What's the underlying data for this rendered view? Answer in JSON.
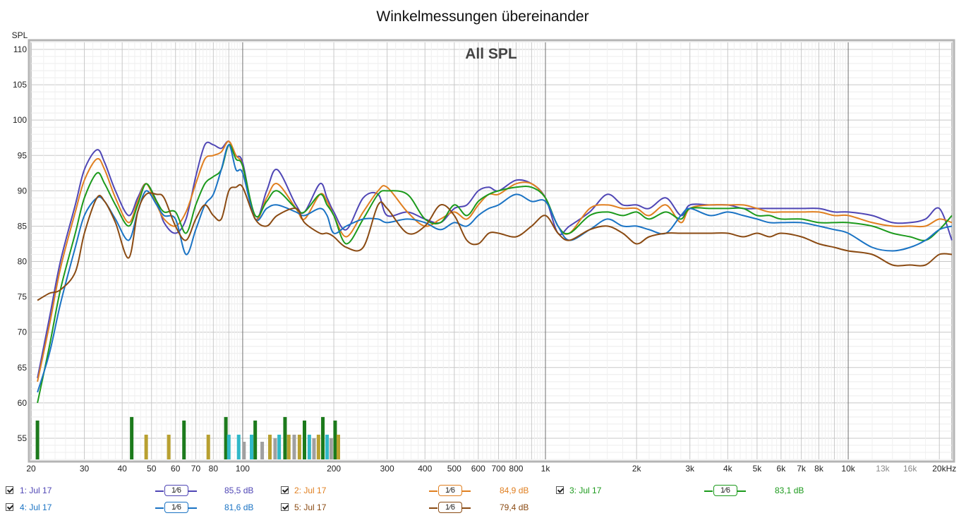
{
  "chart_data": {
    "type": "line",
    "title": "Winkelmessungen übereinander",
    "overlay_label": "All SPL",
    "ylabel": "SPL",
    "xlabel": "",
    "xscale": "log",
    "xlim": [
      20,
      22000
    ],
    "ylim": [
      52,
      111
    ],
    "yticks": [
      55,
      60,
      65,
      70,
      75,
      80,
      85,
      90,
      95,
      100,
      105,
      110
    ],
    "xticks": [
      {
        "v": 20,
        "label": "20"
      },
      {
        "v": 30,
        "label": "30"
      },
      {
        "v": 40,
        "label": "40"
      },
      {
        "v": 50,
        "label": "50"
      },
      {
        "v": 60,
        "label": "60"
      },
      {
        "v": 70,
        "label": "70"
      },
      {
        "v": 80,
        "label": "80"
      },
      {
        "v": 100,
        "label": "100"
      },
      {
        "v": 200,
        "label": "200"
      },
      {
        "v": 300,
        "label": "300"
      },
      {
        "v": 400,
        "label": "400"
      },
      {
        "v": 500,
        "label": "500"
      },
      {
        "v": 600,
        "label": "600"
      },
      {
        "v": 700,
        "label": "700"
      },
      {
        "v": 800,
        "label": "800"
      },
      {
        "v": 1000,
        "label": "1k"
      },
      {
        "v": 2000,
        "label": "2k"
      },
      {
        "v": 3000,
        "label": "3k"
      },
      {
        "v": 4000,
        "label": "4k"
      },
      {
        "v": 5000,
        "label": "5k"
      },
      {
        "v": 6000,
        "label": "6k"
      },
      {
        "v": 7000,
        "label": "7k"
      },
      {
        "v": 8000,
        "label": "8k"
      },
      {
        "v": 10000,
        "label": "10k"
      },
      {
        "v": 13000,
        "label": "13k"
      },
      {
        "v": 16000,
        "label": "16k"
      },
      {
        "v": 20000,
        "label": "20kHz"
      }
    ],
    "grid": true,
    "series": [
      {
        "name": "1: Jul 17",
        "color": "#4f46b5",
        "smoothing": "1⁄6",
        "level": "85,5 dB",
        "x": [
          21,
          23,
          25,
          28,
          30,
          33,
          35,
          38,
          42,
          45,
          48,
          52,
          55,
          60,
          65,
          70,
          75,
          80,
          85,
          90,
          95,
          100,
          110,
          120,
          130,
          150,
          160,
          180,
          190,
          200,
          220,
          250,
          280,
          300,
          350,
          400,
          450,
          500,
          550,
          600,
          650,
          700,
          800,
          900,
          1000,
          1100,
          1200,
          1400,
          1600,
          1800,
          2000,
          2200,
          2500,
          2800,
          3000,
          3500,
          4000,
          4500,
          5000,
          5500,
          6000,
          7000,
          8000,
          9000,
          10000,
          12000,
          14000,
          16000,
          18000,
          20000,
          22000
        ],
        "y": [
          63.5,
          72,
          80,
          88,
          93,
          95.8,
          94,
          90,
          86.5,
          89,
          91,
          88.5,
          85.5,
          84,
          86,
          92,
          96.5,
          96.5,
          96,
          97,
          95,
          94,
          86,
          90,
          93,
          88,
          87,
          91,
          89,
          87,
          84.5,
          89,
          89.5,
          86.5,
          87,
          86,
          85.5,
          87.5,
          88,
          90,
          90.5,
          90,
          91.5,
          91,
          89,
          84,
          85,
          87,
          89.5,
          88,
          88,
          87.5,
          89,
          86.5,
          88,
          88,
          88,
          87.5,
          87.5,
          87.5,
          87.5,
          87.5,
          87.5,
          87,
          87,
          86.5,
          85.5,
          85.5,
          86,
          87.5,
          83
        ]
      },
      {
        "name": "2: Jul 17",
        "color": "#e07f20",
        "smoothing": "1⁄6",
        "level": "84,9 dB",
        "x": [
          21,
          23,
          25,
          28,
          30,
          33,
          35,
          38,
          42,
          45,
          48,
          52,
          55,
          60,
          65,
          70,
          75,
          80,
          85,
          90,
          95,
          100,
          110,
          120,
          130,
          150,
          160,
          180,
          190,
          200,
          220,
          250,
          280,
          300,
          350,
          400,
          450,
          500,
          550,
          600,
          650,
          700,
          800,
          900,
          1000,
          1100,
          1200,
          1400,
          1600,
          1800,
          2000,
          2200,
          2500,
          2800,
          3000,
          3500,
          4000,
          4500,
          5000,
          5500,
          6000,
          7000,
          8000,
          9000,
          10000,
          12000,
          14000,
          16000,
          18000,
          20000,
          22000
        ],
        "y": [
          63,
          71,
          79,
          87,
          91.5,
          94.5,
          93,
          89,
          85.5,
          88.5,
          91,
          88,
          86,
          85,
          87,
          91,
          94.5,
          95,
          95.5,
          97,
          95,
          93.5,
          86,
          89,
          91,
          87.5,
          86,
          89.5,
          88.5,
          86.5,
          83.5,
          87,
          90,
          90.5,
          87,
          85,
          86,
          87,
          86,
          88,
          89.5,
          89.5,
          91,
          91,
          89,
          85,
          84,
          87.5,
          88,
          87.5,
          87.5,
          86.5,
          88,
          85.5,
          87.5,
          88,
          88,
          88,
          87.5,
          87,
          87,
          87,
          87,
          86.5,
          86.5,
          85.5,
          85,
          85,
          85,
          86,
          85.5
        ]
      },
      {
        "name": "3: Jul 17",
        "color": "#1c9a1c",
        "smoothing": "1⁄6",
        "level": "83,1 dB",
        "x": [
          21,
          23,
          25,
          28,
          30,
          33,
          35,
          38,
          42,
          45,
          48,
          52,
          55,
          60,
          65,
          70,
          75,
          80,
          85,
          90,
          95,
          100,
          110,
          120,
          130,
          150,
          160,
          180,
          190,
          200,
          220,
          250,
          280,
          300,
          350,
          400,
          450,
          500,
          550,
          600,
          650,
          700,
          800,
          900,
          1000,
          1100,
          1200,
          1400,
          1600,
          1800,
          2000,
          2200,
          2500,
          2800,
          3000,
          3500,
          4000,
          4500,
          5000,
          5500,
          6000,
          7000,
          8000,
          9000,
          10000,
          12000,
          14000,
          16000,
          18000,
          20000,
          22000
        ],
        "y": [
          60,
          68,
          76,
          84,
          89,
          92.5,
          91,
          88,
          85,
          88,
          91,
          88.5,
          87,
          87,
          84,
          88,
          91,
          92,
          93,
          96.5,
          94.5,
          93.5,
          86.5,
          88.5,
          90,
          87.5,
          87,
          89.5,
          88,
          86.5,
          82.5,
          86,
          89.5,
          90,
          89.5,
          86,
          85.5,
          88,
          86.5,
          88.5,
          89.5,
          90,
          90.5,
          90.5,
          89,
          85,
          84,
          86.5,
          87,
          86.5,
          87,
          86,
          87,
          86,
          87.5,
          87.5,
          87.5,
          87.5,
          86.5,
          86.5,
          86,
          86,
          85.5,
          85.5,
          85.5,
          85,
          84,
          83.5,
          83,
          84.5,
          86.5
        ]
      },
      {
        "name": "4: Jul 17",
        "color": "#1a73c4",
        "smoothing": "1⁄6",
        "level": "81,6 dB",
        "x": [
          21,
          23,
          25,
          28,
          30,
          33,
          35,
          38,
          42,
          45,
          48,
          52,
          55,
          60,
          65,
          70,
          75,
          80,
          85,
          90,
          95,
          100,
          110,
          120,
          130,
          150,
          160,
          180,
          190,
          200,
          220,
          250,
          280,
          300,
          350,
          400,
          450,
          500,
          550,
          600,
          650,
          700,
          800,
          900,
          1000,
          1100,
          1200,
          1400,
          1600,
          1800,
          2000,
          2200,
          2500,
          2800,
          3000,
          3500,
          4000,
          4500,
          5000,
          5500,
          6000,
          7000,
          8000,
          9000,
          10000,
          12000,
          14000,
          16000,
          18000,
          20000,
          22000
        ],
        "y": [
          61.5,
          67,
          74,
          82,
          86.5,
          89,
          88.5,
          86,
          83,
          87,
          90,
          88,
          86.5,
          86,
          81,
          84.5,
          88,
          89.5,
          93,
          96.5,
          93,
          92.5,
          86,
          87.5,
          88,
          87,
          86.5,
          87.5,
          86.5,
          84,
          85,
          86,
          86,
          85.5,
          86,
          85.5,
          84.5,
          85.5,
          85,
          86.5,
          87.5,
          88,
          89.5,
          88.5,
          88.5,
          85,
          83,
          84.5,
          86,
          85,
          85,
          84.5,
          84,
          86.5,
          87.5,
          86.5,
          87,
          86.5,
          86,
          85.5,
          85.5,
          85.5,
          85,
          84.5,
          84,
          82,
          81.5,
          82,
          83,
          84.5,
          85
        ]
      },
      {
        "name": "5: Jul 17",
        "color": "#8a4a12",
        "smoothing": "1⁄6",
        "level": "79,4 dB",
        "x": [
          21,
          23,
          25,
          28,
          30,
          33,
          35,
          38,
          42,
          45,
          48,
          52,
          55,
          60,
          65,
          70,
          75,
          80,
          85,
          90,
          95,
          100,
          110,
          120,
          130,
          150,
          160,
          180,
          190,
          200,
          220,
          250,
          280,
          300,
          350,
          400,
          450,
          500,
          550,
          600,
          650,
          700,
          800,
          900,
          1000,
          1100,
          1200,
          1400,
          1600,
          1800,
          2000,
          2200,
          2500,
          2800,
          3000,
          3500,
          4000,
          4500,
          5000,
          5500,
          6000,
          7000,
          8000,
          9000,
          10000,
          12000,
          14000,
          16000,
          18000,
          20000,
          22000
        ],
        "y": [
          74.5,
          75.5,
          76,
          78.5,
          84,
          89,
          88.5,
          85.5,
          80.5,
          87,
          89.5,
          89.5,
          89,
          85,
          83,
          86,
          88,
          86.5,
          86,
          90,
          90.5,
          90.5,
          86,
          85,
          86.5,
          87.5,
          85.5,
          84,
          84,
          83.5,
          82,
          82,
          88,
          87.5,
          84,
          85,
          88,
          86.5,
          83,
          82.5,
          84,
          84,
          83.5,
          85,
          86.5,
          84,
          83,
          84.5,
          85,
          84,
          82.5,
          83.5,
          84,
          84,
          84,
          84,
          84,
          83.5,
          84,
          83.5,
          84,
          83.5,
          82.5,
          82,
          81.5,
          81,
          79.5,
          79.5,
          79.5,
          81,
          81
        ]
      }
    ],
    "bottom_bars": [
      {
        "f": 21,
        "db": 57.5,
        "color": "#1c7a1c"
      },
      {
        "f": 43,
        "db": 58,
        "color": "#1c7a1c"
      },
      {
        "f": 48,
        "db": 55.5,
        "color": "#b8a030"
      },
      {
        "f": 57,
        "db": 55.5,
        "color": "#b8a030"
      },
      {
        "f": 64,
        "db": 57.5,
        "color": "#1c7a1c"
      },
      {
        "f": 77,
        "db": 55.5,
        "color": "#b8a030"
      },
      {
        "f": 88,
        "db": 58,
        "color": "#1c7a1c"
      },
      {
        "f": 90,
        "db": 55.5,
        "color": "#30b8c8"
      },
      {
        "f": 97,
        "db": 55.5,
        "color": "#30b8c8"
      },
      {
        "f": 101,
        "db": 54.5,
        "color": "#a0a0a0"
      },
      {
        "f": 107,
        "db": 55.5,
        "color": "#30b8c8"
      },
      {
        "f": 110,
        "db": 57.5,
        "color": "#1c7a1c"
      },
      {
        "f": 116,
        "db": 54.5,
        "color": "#a0a0a0"
      },
      {
        "f": 123,
        "db": 55.5,
        "color": "#b8a030"
      },
      {
        "f": 128,
        "db": 55,
        "color": "#a0a0a0"
      },
      {
        "f": 132,
        "db": 55.5,
        "color": "#30b8c8"
      },
      {
        "f": 138,
        "db": 58,
        "color": "#1c7a1c"
      },
      {
        "f": 142,
        "db": 55.5,
        "color": "#b8a030"
      },
      {
        "f": 148,
        "db": 55.5,
        "color": "#a0a0a0"
      },
      {
        "f": 154,
        "db": 55.5,
        "color": "#b8a030"
      },
      {
        "f": 160,
        "db": 57.5,
        "color": "#1c7a1c"
      },
      {
        "f": 166,
        "db": 55.5,
        "color": "#30b8c8"
      },
      {
        "f": 172,
        "db": 55,
        "color": "#a0a0a0"
      },
      {
        "f": 178,
        "db": 55.5,
        "color": "#b8a030"
      },
      {
        "f": 184,
        "db": 58,
        "color": "#1c7a1c"
      },
      {
        "f": 190,
        "db": 55.5,
        "color": "#30b8c8"
      },
      {
        "f": 196,
        "db": 55,
        "color": "#a0a0a0"
      },
      {
        "f": 202,
        "db": 57.5,
        "color": "#1c7a1c"
      },
      {
        "f": 207,
        "db": 55.5,
        "color": "#b8a030"
      }
    ]
  },
  "legend": [
    {
      "row": 0,
      "label": "1: Jul 17",
      "smoothing": "1⁄6",
      "level": "85,5 dB",
      "color": "#4f46b5"
    },
    {
      "row": 0,
      "label": "2: Jul 17",
      "smoothing": "1⁄6",
      "level": "84,9 dB",
      "color": "#e07f20"
    },
    {
      "row": 0,
      "label": "3: Jul 17",
      "smoothing": "1⁄6",
      "level": "83,1 dB",
      "color": "#1c9a1c"
    },
    {
      "row": 1,
      "label": "4: Jul 17",
      "smoothing": "1⁄6",
      "level": "81,6 dB",
      "color": "#1a73c4"
    },
    {
      "row": 1,
      "label": "5: Jul 17",
      "smoothing": "1⁄6",
      "level": "79,4 dB",
      "color": "#8a4a12"
    }
  ]
}
